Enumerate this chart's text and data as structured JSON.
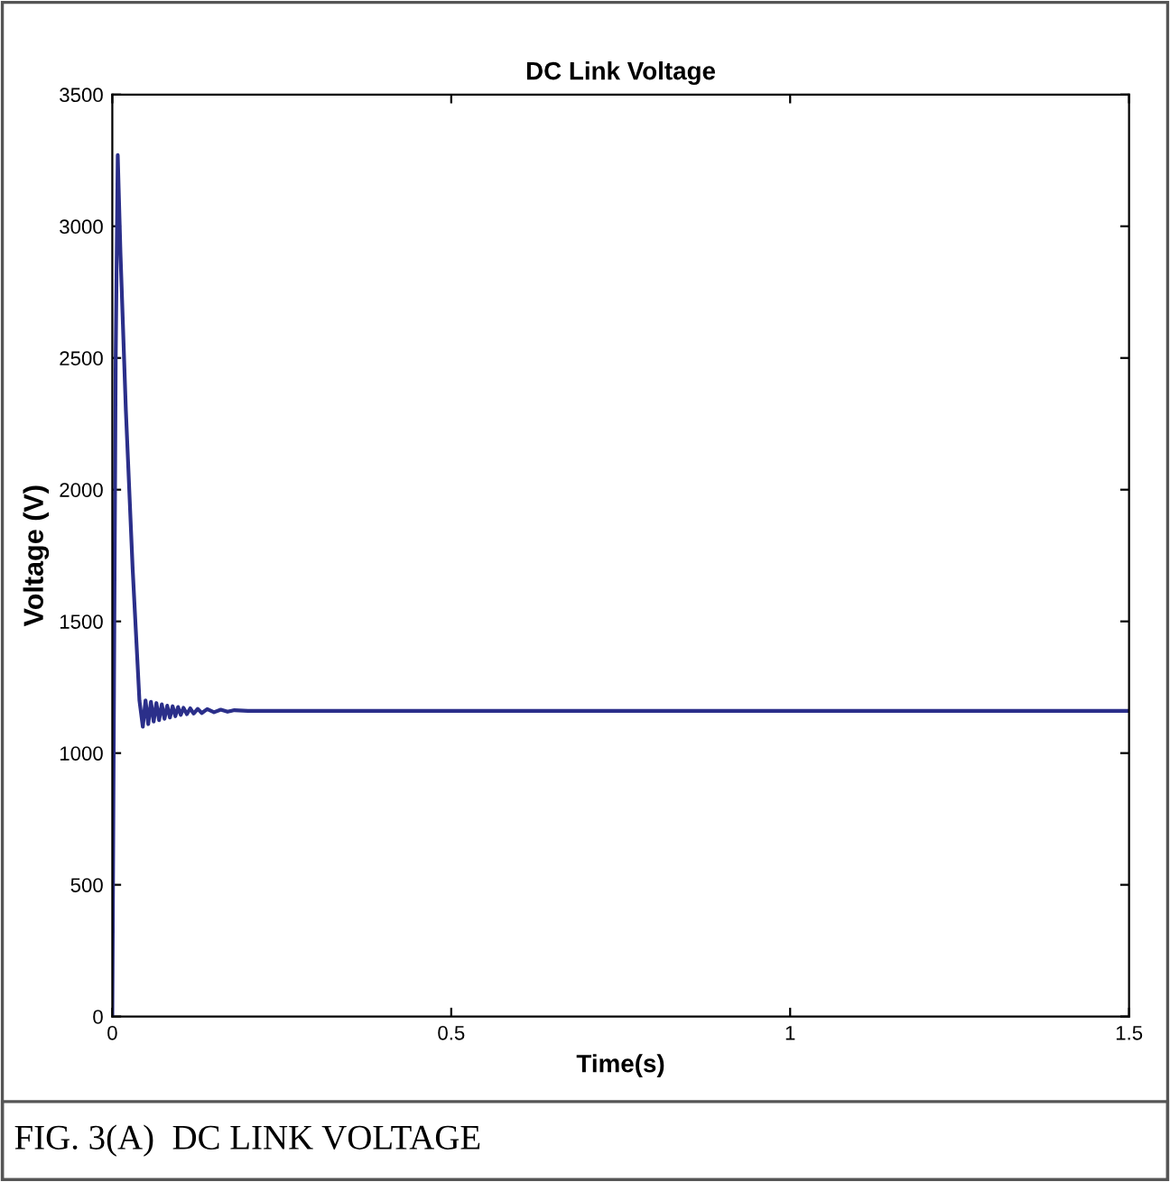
{
  "chart_data": {
    "type": "line",
    "title": "DC Link Voltage",
    "xlabel": "Time(s)",
    "ylabel": "Voltage (V)",
    "annotations": [
      "FIG. 3(A)  DC LINK VOLTAGE"
    ],
    "x": [
      0,
      0.002,
      0.005,
      0.008,
      0.012,
      0.02,
      0.03,
      0.04,
      0.045,
      0.049,
      0.053,
      0.057,
      0.061,
      0.065,
      0.069,
      0.073,
      0.077,
      0.081,
      0.085,
      0.089,
      0.093,
      0.097,
      0.101,
      0.105,
      0.11,
      0.115,
      0.12,
      0.126,
      0.132,
      0.14,
      0.15,
      0.16,
      0.17,
      0.18,
      0.2,
      0.5,
      1.0,
      1.5
    ],
    "series": [
      {
        "color": "#2b2f8a",
        "values": [
          0,
          1000,
          2500,
          3270,
          2900,
          2300,
          1700,
          1200,
          1100,
          1200,
          1110,
          1195,
          1120,
          1190,
          1125,
          1185,
          1130,
          1180,
          1135,
          1178,
          1140,
          1175,
          1145,
          1172,
          1148,
          1170,
          1150,
          1168,
          1152,
          1167,
          1155,
          1165,
          1157,
          1163,
          1160,
          1160,
          1160,
          1160
        ]
      }
    ],
    "xlim": [
      0,
      1.5
    ],
    "ylim": [
      0,
      3500
    ],
    "xticks": [
      0,
      0.5,
      1,
      1.5
    ],
    "yticks": [
      0,
      500,
      1000,
      1500,
      2000,
      2500,
      3000,
      3500
    ],
    "grid": false,
    "legend": false
  }
}
